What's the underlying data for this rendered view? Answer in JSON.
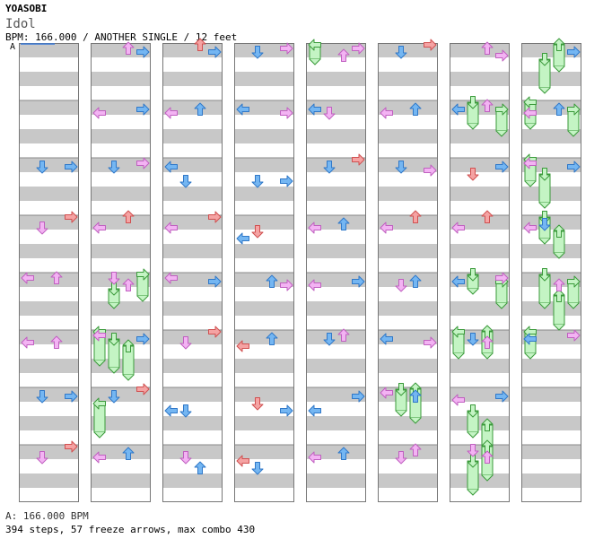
{
  "header": {
    "artist": "YOASOBI",
    "title": "Idol",
    "info": "BPM: 166.000 / ANOTHER SINGLE / 12 feet",
    "bpm_change_label": "A"
  },
  "footer": {
    "bpm_legend": "A: 166.000 BPM",
    "stats": "394 steps, 57 freeze arrows, max combo 430"
  },
  "chart": {
    "columns": 8,
    "measures_per_column": 8,
    "steps_per_measure": 16,
    "lane_order": [
      "left",
      "down",
      "up",
      "right"
    ],
    "colors": {
      "quarter_fill": "#f5a3a3",
      "quarter_stroke": "#d05050",
      "eighth_fill": "#74b6f2",
      "eighth_stroke": "#3078c8",
      "other_fill": "#f3b3f3",
      "other_stroke": "#c060c0",
      "freeze_fill": "#c4f4c4",
      "freeze_stroke": "#3a9a3a",
      "band_dark": "#c8c8c8",
      "band_light": "#ffffff",
      "measure_line": "#888888",
      "column_border": "#777777"
    },
    "notes": [
      [
        0,
        2,
        1,
        2
      ],
      [
        0,
        2,
        3,
        2
      ],
      [
        0,
        3,
        1,
        3
      ],
      [
        0,
        3,
        3,
        0
      ],
      [
        0,
        4,
        0,
        1
      ],
      [
        0,
        4,
        2,
        1
      ],
      [
        0,
        5,
        0,
        3
      ],
      [
        0,
        5,
        2,
        3
      ],
      [
        0,
        6,
        1,
        2
      ],
      [
        0,
        6,
        3,
        2
      ],
      [
        0,
        7,
        1,
        3
      ],
      [
        0,
        7,
        3,
        0
      ],
      [
        1,
        0,
        2,
        1
      ],
      [
        1,
        0,
        3,
        2
      ],
      [
        1,
        1,
        0,
        3
      ],
      [
        1,
        1,
        3,
        2
      ],
      [
        1,
        2,
        1,
        2
      ],
      [
        1,
        2,
        3,
        1
      ],
      [
        1,
        3,
        0,
        3
      ],
      [
        1,
        3,
        2,
        0
      ],
      [
        1,
        4,
        1,
        1
      ],
      [
        1,
        4,
        2,
        3
      ],
      [
        1,
        5,
        0,
        1
      ],
      [
        1,
        5,
        3,
        2
      ],
      [
        1,
        6,
        1,
        2
      ],
      [
        1,
        6,
        3,
        0
      ],
      [
        1,
        7,
        0,
        3
      ],
      [
        1,
        7,
        2,
        2
      ],
      [
        2,
        0,
        2,
        0
      ],
      [
        2,
        0,
        3,
        2
      ],
      [
        2,
        1,
        0,
        3
      ],
      [
        2,
        1,
        2,
        2
      ],
      [
        2,
        2,
        0,
        2
      ],
      [
        2,
        2,
        1,
        6
      ],
      [
        2,
        3,
        0,
        3
      ],
      [
        2,
        3,
        3,
        0
      ],
      [
        2,
        4,
        0,
        1
      ],
      [
        2,
        4,
        3,
        2
      ],
      [
        2,
        5,
        1,
        3
      ],
      [
        2,
        5,
        3,
        0
      ],
      [
        2,
        6,
        0,
        6
      ],
      [
        2,
        6,
        1,
        6
      ],
      [
        2,
        7,
        1,
        3
      ],
      [
        2,
        7,
        2,
        6
      ],
      [
        3,
        0,
        1,
        2
      ],
      [
        3,
        0,
        3,
        1
      ],
      [
        3,
        1,
        0,
        2
      ],
      [
        3,
        1,
        3,
        3
      ],
      [
        3,
        2,
        1,
        6
      ],
      [
        3,
        2,
        3,
        6
      ],
      [
        3,
        3,
        0,
        6
      ],
      [
        3,
        3,
        1,
        4
      ],
      [
        3,
        4,
        2,
        2
      ],
      [
        3,
        4,
        3,
        3
      ],
      [
        3,
        5,
        0,
        4
      ],
      [
        3,
        5,
        2,
        2
      ],
      [
        3,
        6,
        1,
        4
      ],
      [
        3,
        6,
        3,
        6
      ],
      [
        3,
        7,
        0,
        4
      ],
      [
        3,
        7,
        1,
        6
      ],
      [
        4,
        0,
        2,
        3
      ],
      [
        4,
        0,
        3,
        1
      ],
      [
        4,
        1,
        0,
        2
      ],
      [
        4,
        1,
        1,
        3
      ],
      [
        4,
        2,
        1,
        2
      ],
      [
        4,
        2,
        3,
        0
      ],
      [
        4,
        3,
        0,
        3
      ],
      [
        4,
        3,
        2,
        2
      ],
      [
        4,
        4,
        0,
        3
      ],
      [
        4,
        4,
        3,
        2
      ],
      [
        4,
        5,
        1,
        2
      ],
      [
        4,
        5,
        2,
        1
      ],
      [
        4,
        6,
        0,
        6
      ],
      [
        4,
        6,
        3,
        2
      ],
      [
        4,
        7,
        0,
        3
      ],
      [
        4,
        7,
        2,
        2
      ],
      [
        5,
        0,
        1,
        2
      ],
      [
        5,
        0,
        3,
        0
      ],
      [
        5,
        1,
        0,
        3
      ],
      [
        5,
        1,
        2,
        2
      ],
      [
        5,
        2,
        1,
        2
      ],
      [
        5,
        2,
        3,
        3
      ],
      [
        5,
        3,
        0,
        3
      ],
      [
        5,
        3,
        2,
        0
      ],
      [
        5,
        4,
        1,
        3
      ],
      [
        5,
        4,
        2,
        2
      ],
      [
        5,
        5,
        0,
        2
      ],
      [
        5,
        5,
        3,
        3
      ],
      [
        5,
        6,
        0,
        1
      ],
      [
        5,
        6,
        2,
        2
      ],
      [
        5,
        7,
        1,
        3
      ],
      [
        5,
        7,
        2,
        1
      ],
      [
        6,
        0,
        2,
        1
      ],
      [
        6,
        0,
        3,
        3
      ],
      [
        6,
        1,
        0,
        2
      ],
      [
        6,
        1,
        2,
        1
      ],
      [
        6,
        2,
        1,
        4
      ],
      [
        6,
        2,
        3,
        2
      ],
      [
        6,
        3,
        0,
        3
      ],
      [
        6,
        3,
        2,
        0
      ],
      [
        6,
        4,
        0,
        2
      ],
      [
        6,
        4,
        3,
        1
      ],
      [
        6,
        5,
        1,
        2
      ],
      [
        6,
        5,
        2,
        3
      ],
      [
        6,
        6,
        0,
        3
      ],
      [
        6,
        6,
        3,
        2
      ],
      [
        6,
        7,
        1,
        1
      ],
      [
        6,
        7,
        2,
        3
      ],
      [
        7,
        0,
        3,
        2
      ],
      [
        7,
        1,
        0,
        3
      ],
      [
        7,
        1,
        2,
        2
      ],
      [
        7,
        2,
        0,
        1
      ],
      [
        7,
        2,
        3,
        2
      ],
      [
        7,
        3,
        0,
        3
      ],
      [
        7,
        3,
        1,
        2
      ],
      [
        7,
        4,
        2,
        3
      ],
      [
        7,
        5,
        0,
        2
      ],
      [
        7,
        5,
        3,
        1
      ]
    ],
    "freezes": [
      [
        1,
        4,
        3,
        0,
        6
      ],
      [
        1,
        4,
        1,
        4,
        8
      ],
      [
        1,
        5,
        0,
        0,
        8
      ],
      [
        1,
        5,
        1,
        2,
        10
      ],
      [
        1,
        5,
        2,
        4,
        12
      ],
      [
        1,
        6,
        0,
        4,
        12
      ],
      [
        4,
        0,
        0,
        0,
        4
      ],
      [
        5,
        6,
        1,
        0,
        6
      ],
      [
        5,
        6,
        2,
        0,
        8
      ],
      [
        6,
        1,
        1,
        0,
        6
      ],
      [
        6,
        1,
        3,
        2,
        8
      ],
      [
        6,
        4,
        1,
        0,
        4
      ],
      [
        6,
        4,
        3,
        2,
        8
      ],
      [
        6,
        5,
        0,
        0,
        6
      ],
      [
        6,
        5,
        2,
        0,
        6
      ],
      [
        6,
        6,
        1,
        6,
        12
      ],
      [
        6,
        6,
        2,
        10,
        16
      ],
      [
        6,
        7,
        2,
        0,
        8
      ],
      [
        6,
        7,
        1,
        4,
        12
      ],
      [
        7,
        0,
        2,
        0,
        6
      ],
      [
        7,
        0,
        1,
        4,
        12
      ],
      [
        7,
        1,
        0,
        0,
        6
      ],
      [
        7,
        1,
        3,
        2,
        8
      ],
      [
        7,
        2,
        0,
        0,
        6
      ],
      [
        7,
        2,
        1,
        4,
        12
      ],
      [
        7,
        3,
        1,
        0,
        6
      ],
      [
        7,
        3,
        2,
        4,
        10
      ],
      [
        7,
        4,
        1,
        0,
        8
      ],
      [
        7,
        4,
        3,
        2,
        8
      ],
      [
        7,
        4,
        2,
        6,
        14
      ],
      [
        7,
        5,
        0,
        0,
        6
      ]
    ]
  }
}
